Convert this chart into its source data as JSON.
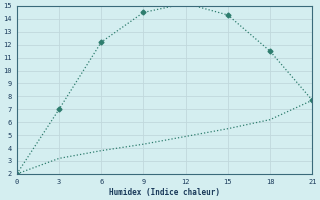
{
  "xlabel": "Humidex (Indice chaleur)",
  "line1_x": [
    0,
    3,
    6,
    9,
    12,
    15,
    18,
    21
  ],
  "line1_y": [
    2,
    7,
    12.2,
    14.5,
    15.2,
    14.3,
    11.5,
    7.7
  ],
  "line2_x": [
    0,
    3,
    6,
    9,
    12,
    15,
    18,
    21
  ],
  "line2_y": [
    2,
    3.2,
    3.8,
    4.3,
    4.9,
    5.5,
    6.2,
    7.7
  ],
  "color": "#2e7d6e",
  "bg_color": "#d4eef0",
  "grid_color": "#c0d8dc",
  "xlim": [
    0,
    21
  ],
  "ylim": [
    2,
    15
  ],
  "xticks": [
    0,
    3,
    6,
    9,
    12,
    15,
    18,
    21
  ],
  "yticks": [
    2,
    3,
    4,
    5,
    6,
    7,
    8,
    9,
    10,
    11,
    12,
    13,
    14,
    15
  ],
  "marker": "D",
  "markersize": 2.5,
  "linewidth": 0.9
}
